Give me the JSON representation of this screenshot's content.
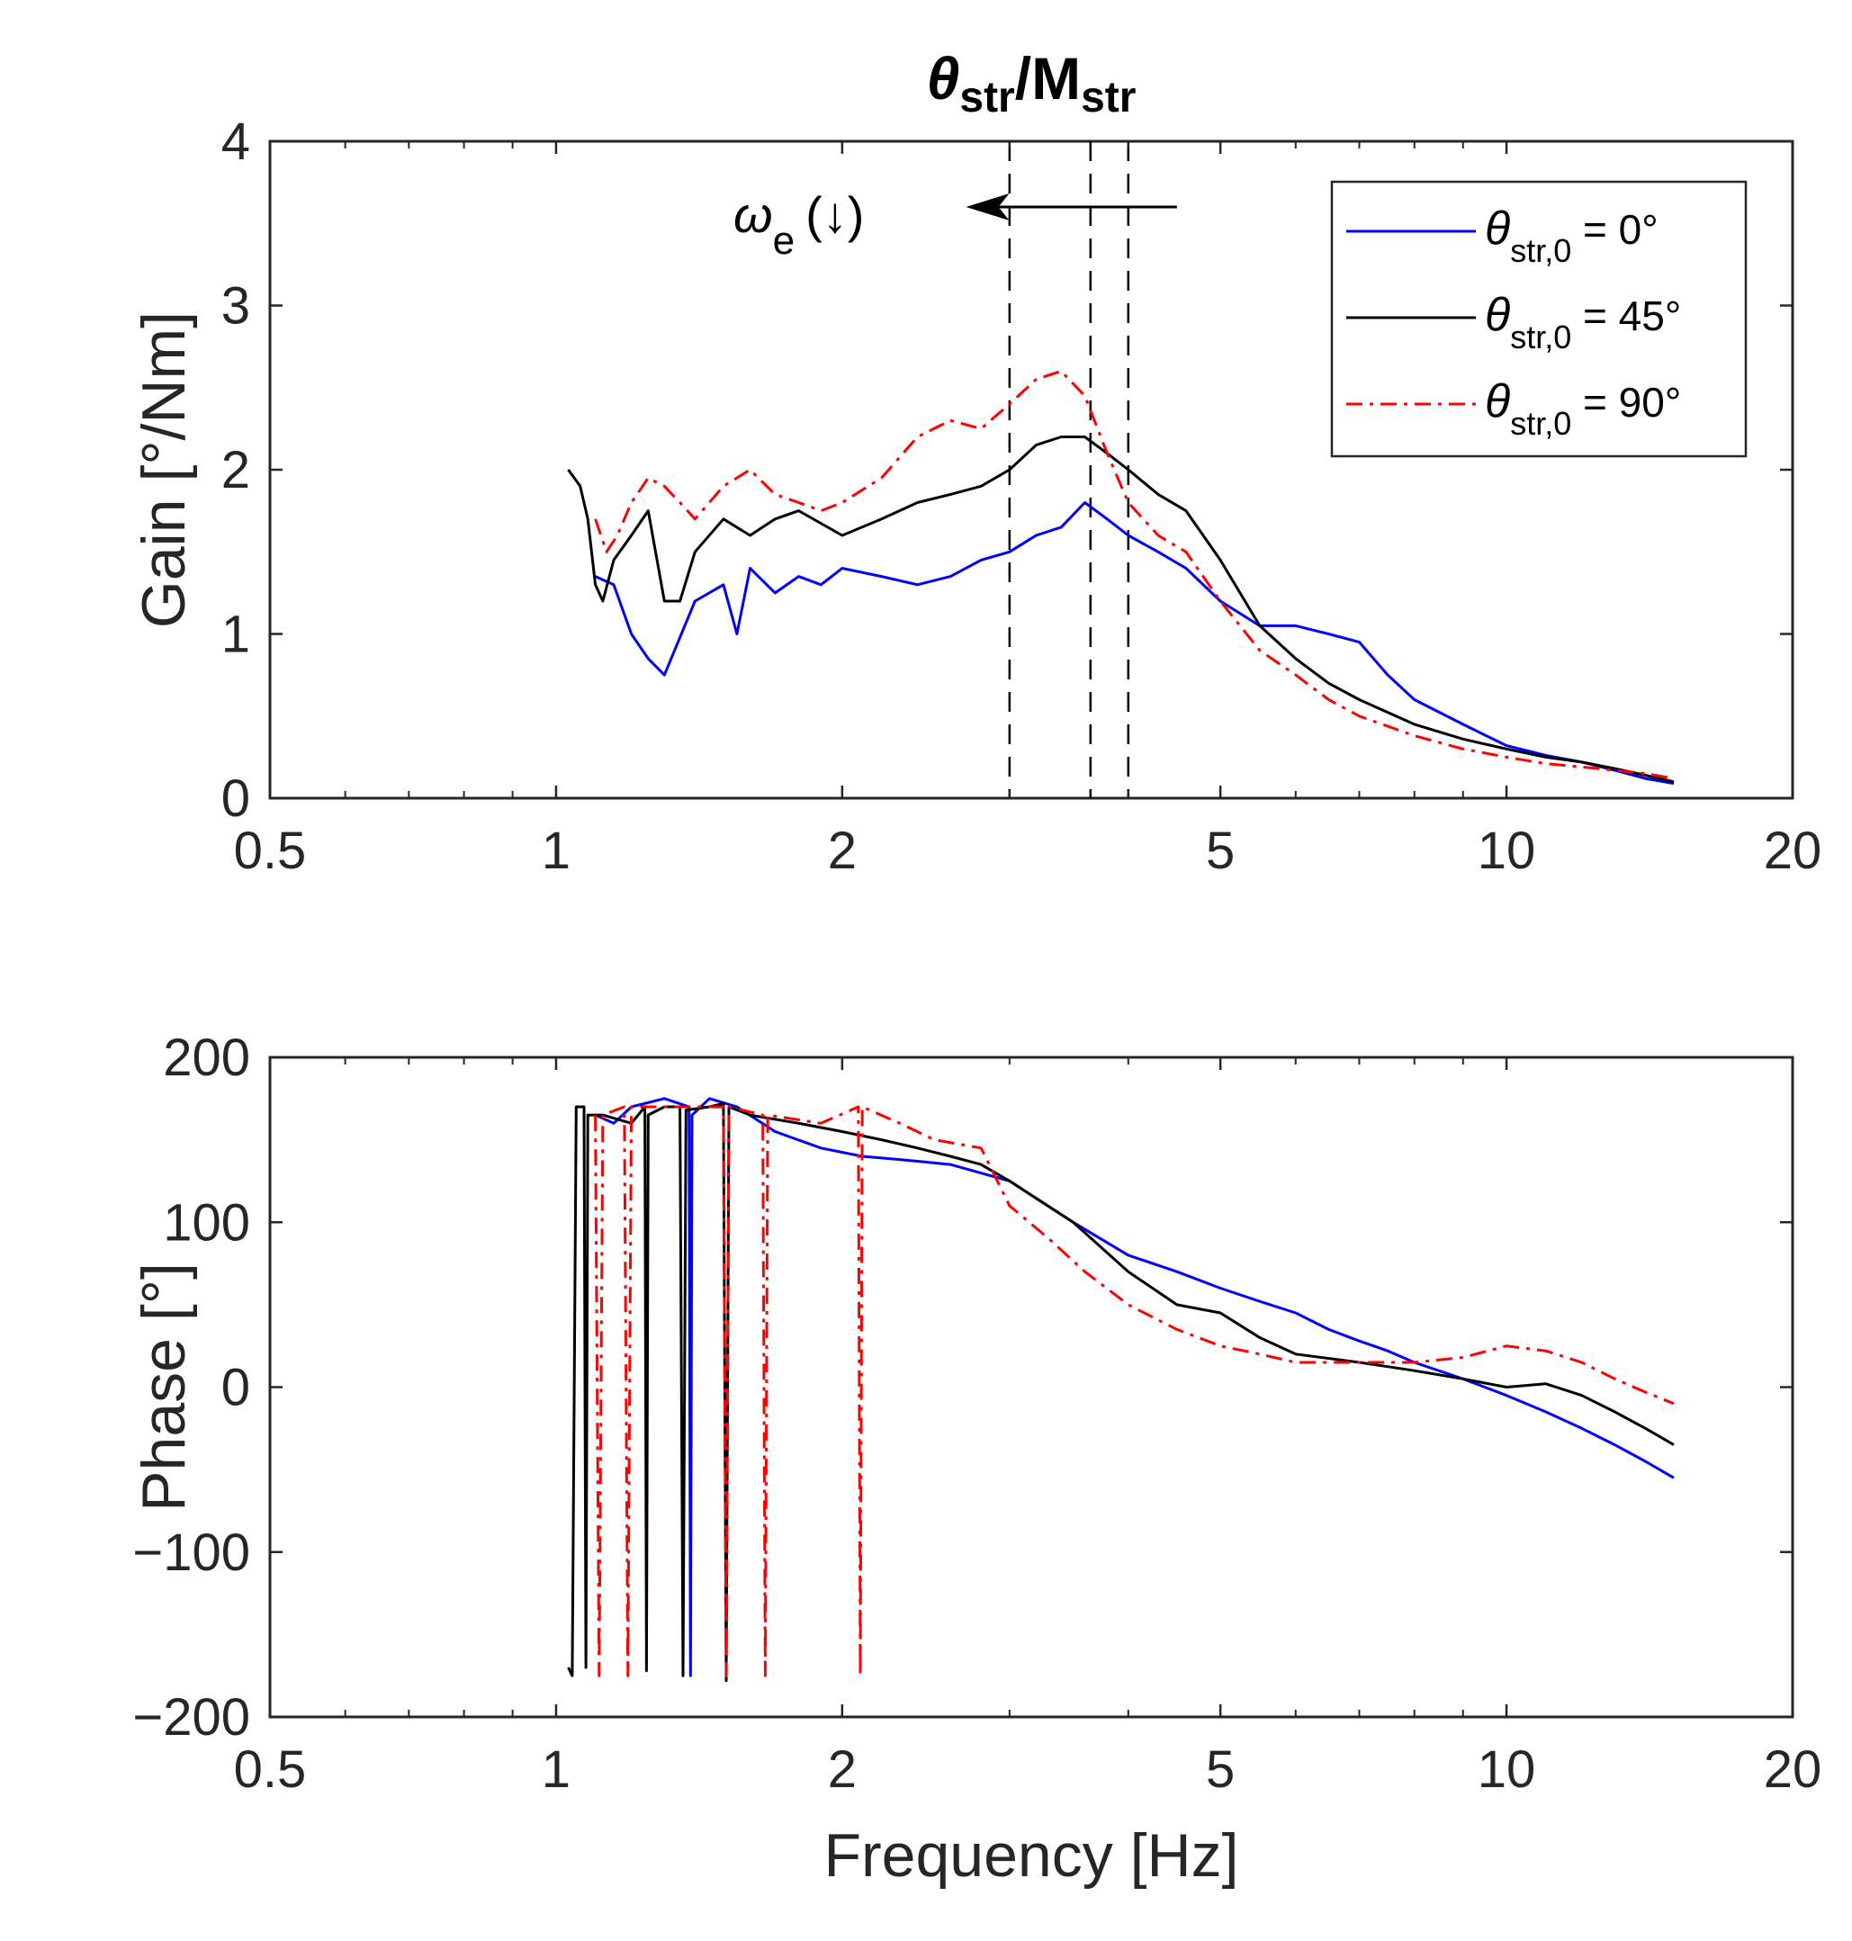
{
  "chart_data": [
    {
      "type": "line",
      "panel": "gain",
      "title": {
        "theta": "θ",
        "str1": "str",
        "slash": "/",
        "M": "M",
        "str2": "str"
      },
      "xscale": "log",
      "xlabel": "",
      "ylabel": "Gain [°/Nm]",
      "xlim": [
        0.5,
        20
      ],
      "ylim": [
        0,
        4
      ],
      "xticks": [
        0.5,
        1,
        2,
        5,
        10,
        20
      ],
      "xticklabels": [
        "0.5",
        "1",
        "2",
        "5",
        "10",
        "20"
      ],
      "yticks": [
        0,
        1,
        2,
        3,
        4
      ],
      "yticklabels": [
        "0",
        "1",
        "2",
        "3",
        "4"
      ],
      "grid": false,
      "vlines": [
        3.0,
        3.65,
        4.0
      ],
      "annotation": {
        "omega": "ω",
        "sub": "e",
        "arrow_text": "(↓)",
        "from_x": 4.5,
        "to_x": 2.7,
        "y": 3.6
      },
      "legend": {
        "position": "top-right",
        "entries": [
          {
            "sym": "θ",
            "sub": "str,0",
            "rest": " = 0°"
          },
          {
            "sym": "θ",
            "sub": "str,0",
            "rest": " = 45°"
          },
          {
            "sym": "θ",
            "sub": "str,0",
            "rest": " = 90°"
          }
        ]
      },
      "series": [
        {
          "name": "θstr,0 = 0°",
          "color": "#0000ff",
          "dash": "solid",
          "x": [
            1.1,
            1.15,
            1.2,
            1.25,
            1.3,
            1.4,
            1.5,
            1.55,
            1.6,
            1.7,
            1.8,
            1.9,
            2.0,
            2.2,
            2.4,
            2.6,
            2.8,
            3.0,
            3.2,
            3.4,
            3.6,
            3.8,
            4.0,
            4.3,
            4.6,
            5.0,
            5.5,
            6.0,
            6.5,
            7.0,
            7.5,
            8.0,
            9.0,
            10.0,
            11.0,
            12.0,
            13.0,
            14.0,
            15.0
          ],
          "y": [
            1.35,
            1.3,
            1.0,
            0.85,
            0.75,
            1.2,
            1.3,
            1.0,
            1.4,
            1.25,
            1.35,
            1.3,
            1.4,
            1.35,
            1.3,
            1.35,
            1.45,
            1.5,
            1.6,
            1.65,
            1.8,
            1.7,
            1.6,
            1.5,
            1.4,
            1.2,
            1.05,
            1.05,
            1.0,
            0.95,
            0.75,
            0.6,
            0.45,
            0.32,
            0.26,
            0.22,
            0.17,
            0.12,
            0.09
          ]
        },
        {
          "name": "θstr,0 = 45°",
          "color": "#000000",
          "dash": "solid",
          "x": [
            1.03,
            1.06,
            1.08,
            1.1,
            1.12,
            1.15,
            1.2,
            1.25,
            1.3,
            1.35,
            1.4,
            1.5,
            1.6,
            1.7,
            1.8,
            2.0,
            2.2,
            2.4,
            2.6,
            2.8,
            3.0,
            3.2,
            3.4,
            3.6,
            3.8,
            4.0,
            4.3,
            4.6,
            5.0,
            5.5,
            6.0,
            6.5,
            7.0,
            8.0,
            9.0,
            10.0,
            11.0,
            12.0,
            13.0,
            14.0,
            15.0
          ],
          "y": [
            2.0,
            1.9,
            1.7,
            1.3,
            1.2,
            1.45,
            1.6,
            1.75,
            1.2,
            1.2,
            1.5,
            1.7,
            1.6,
            1.7,
            1.75,
            1.6,
            1.7,
            1.8,
            1.85,
            1.9,
            2.0,
            2.15,
            2.2,
            2.2,
            2.1,
            2.0,
            1.85,
            1.75,
            1.45,
            1.05,
            0.85,
            0.7,
            0.6,
            0.45,
            0.36,
            0.3,
            0.25,
            0.22,
            0.18,
            0.14,
            0.1
          ]
        },
        {
          "name": "θstr,0 = 90°",
          "color": "#ff0000",
          "dash": "dashdot",
          "x": [
            1.1,
            1.13,
            1.16,
            1.2,
            1.25,
            1.3,
            1.35,
            1.4,
            1.5,
            1.6,
            1.7,
            1.8,
            1.9,
            2.0,
            2.2,
            2.4,
            2.6,
            2.8,
            3.0,
            3.2,
            3.4,
            3.6,
            3.8,
            4.0,
            4.3,
            4.6,
            5.0,
            5.5,
            6.0,
            6.5,
            7.0,
            8.0,
            9.0,
            10.0,
            11.0,
            12.0,
            13.0,
            14.0,
            15.0
          ],
          "y": [
            1.7,
            1.5,
            1.6,
            1.8,
            1.95,
            1.9,
            1.8,
            1.7,
            1.9,
            2.0,
            1.85,
            1.8,
            1.75,
            1.8,
            1.95,
            2.2,
            2.3,
            2.25,
            2.4,
            2.55,
            2.6,
            2.45,
            2.1,
            1.8,
            1.6,
            1.5,
            1.2,
            0.9,
            0.75,
            0.6,
            0.5,
            0.38,
            0.3,
            0.25,
            0.21,
            0.19,
            0.17,
            0.15,
            0.12
          ]
        }
      ]
    },
    {
      "type": "line",
      "panel": "phase",
      "title": "",
      "xscale": "log",
      "xlabel": "Frequency [Hz]",
      "ylabel": "Phase [°]",
      "xlim": [
        0.5,
        20
      ],
      "ylim": [
        -200,
        200
      ],
      "xticks": [
        0.5,
        1,
        2,
        5,
        10,
        20
      ],
      "xticklabels": [
        "0.5",
        "1",
        "2",
        "5",
        "10",
        "20"
      ],
      "yticks": [
        -200,
        -100,
        0,
        100,
        200
      ],
      "yticklabels": [
        "−200",
        "−100",
        "0",
        "100",
        "200"
      ],
      "grid": false,
      "series": [
        {
          "name": "θstr,0 = 0°",
          "color": "#0000ff",
          "dash": "solid",
          "x": [
            1.1,
            1.15,
            1.2,
            1.3,
            1.38,
            1.385,
            1.39,
            1.45,
            1.55,
            1.7,
            1.9,
            2.1,
            2.3,
            2.6,
            3.0,
            3.5,
            4.0,
            4.5,
            5.0,
            5.5,
            6.0,
            6.5,
            7.0,
            7.5,
            8.0,
            9.0,
            10.0,
            11.0,
            12.0,
            13.0,
            14.0,
            15.0
          ],
          "y": [
            165,
            160,
            170,
            175,
            170,
            -175,
            165,
            175,
            170,
            155,
            145,
            140,
            138,
            135,
            125,
            100,
            80,
            70,
            60,
            52,
            45,
            35,
            28,
            22,
            15,
            5,
            -5,
            -15,
            -25,
            -35,
            -45,
            -55
          ]
        },
        {
          "name": "θstr,0 = 45°",
          "color": "#000000",
          "dash": "solid",
          "x": [
            1.03,
            1.04,
            1.05,
            1.07,
            1.075,
            1.08,
            1.12,
            1.2,
            1.24,
            1.245,
            1.25,
            1.3,
            1.35,
            1.36,
            1.37,
            1.45,
            1.5,
            1.51,
            1.52,
            1.6,
            1.8,
            2.0,
            2.2,
            2.4,
            2.6,
            2.8,
            3.0,
            3.5,
            4.0,
            4.5,
            5.0,
            5.5,
            6.0,
            7.0,
            8.0,
            9.0,
            10.0,
            11.0,
            12.0,
            13.0,
            14.0,
            15.0
          ],
          "y": [
            -170,
            -175,
            170,
            170,
            -170,
            165,
            165,
            160,
            170,
            -172,
            165,
            170,
            170,
            -175,
            168,
            170,
            172,
            -178,
            170,
            165,
            160,
            155,
            150,
            145,
            140,
            135,
            125,
            100,
            70,
            50,
            45,
            30,
            20,
            15,
            10,
            5,
            0,
            2,
            -5,
            -15,
            -25,
            -35
          ]
        },
        {
          "name": "θstr,0 = 90°",
          "color": "#ff0000",
          "dash": "dashdot",
          "x": [
            1.1,
            1.11,
            1.12,
            1.18,
            1.19,
            1.2,
            1.3,
            1.5,
            1.51,
            1.52,
            1.65,
            1.66,
            1.67,
            1.9,
            2.08,
            2.09,
            2.1,
            2.3,
            2.5,
            2.8,
            3.0,
            3.3,
            3.6,
            4.0,
            4.5,
            5.0,
            5.5,
            6.0,
            7.0,
            8.0,
            9.0,
            10.0,
            11.0,
            12.0,
            13.0,
            14.0,
            15.0
          ],
          "y": [
            165,
            -175,
            165,
            170,
            -175,
            170,
            170,
            170,
            -175,
            170,
            165,
            -175,
            165,
            160,
            170,
            -175,
            170,
            160,
            150,
            145,
            110,
            90,
            70,
            50,
            35,
            25,
            20,
            15,
            15,
            15,
            18,
            25,
            22,
            15,
            5,
            -3,
            -10
          ]
        }
      ]
    }
  ]
}
